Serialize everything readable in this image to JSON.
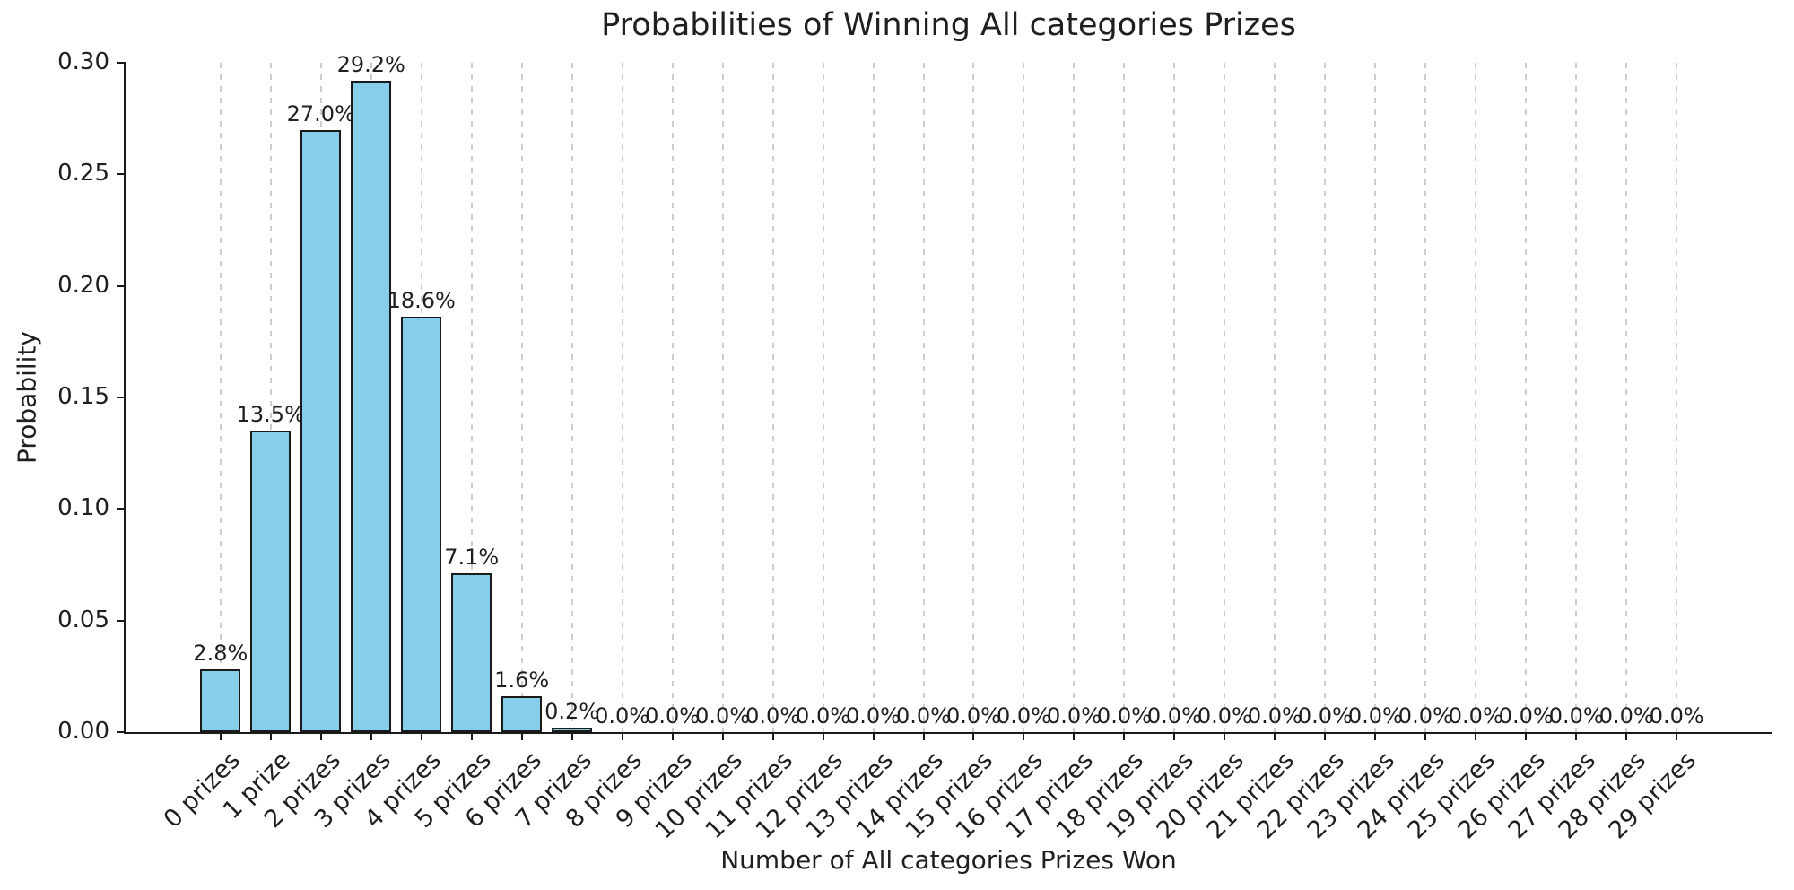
{
  "chart_data": {
    "type": "bar",
    "title": "Probabilities of Winning All categories Prizes",
    "xlabel": "Number of All categories Prizes Won",
    "ylabel": "Probability",
    "categories": [
      "0 prizes",
      "1 prize",
      "2 prizes",
      "3 prizes",
      "4 prizes",
      "5 prizes",
      "6 prizes",
      "7 prizes",
      "8 prizes",
      "9 prizes",
      "10 prizes",
      "11 prizes",
      "12 prizes",
      "13 prizes",
      "14 prizes",
      "15 prizes",
      "16 prizes",
      "17 prizes",
      "18 prizes",
      "19 prizes",
      "20 prizes",
      "21 prizes",
      "22 prizes",
      "23 prizes",
      "24 prizes",
      "25 prizes",
      "26 prizes",
      "27 prizes",
      "28 prizes",
      "29 prizes"
    ],
    "values": [
      0.028,
      0.135,
      0.27,
      0.292,
      0.186,
      0.071,
      0.016,
      0.002,
      0,
      0,
      0,
      0,
      0,
      0,
      0,
      0,
      0,
      0,
      0,
      0,
      0,
      0,
      0,
      0,
      0,
      0,
      0,
      0,
      0,
      0
    ],
    "bar_labels": [
      "2.8%",
      "13.5%",
      "27.0%",
      "29.2%",
      "18.6%",
      "7.1%",
      "1.6%",
      "0.2%",
      "0.0%",
      "0.0%",
      "0.0%",
      "0.0%",
      "0.0%",
      "0.0%",
      "0.0%",
      "0.0%",
      "0.0%",
      "0.0%",
      "0.0%",
      "0.0%",
      "0.0%",
      "0.0%",
      "0.0%",
      "0.0%",
      "0.0%",
      "0.0%",
      "0.0%",
      "0.0%",
      "0.0%",
      "0.0%"
    ],
    "ylim": [
      0,
      0.3
    ],
    "yticks": [
      "0.00",
      "0.05",
      "0.10",
      "0.15",
      "0.20",
      "0.25",
      "0.30"
    ],
    "grid": "vertical-dashed",
    "legend_position": "none",
    "bar_color": "#87CEEB",
    "bar_edge_color": "#1a1a1a",
    "gridline_color": "#cdcdcd"
  }
}
